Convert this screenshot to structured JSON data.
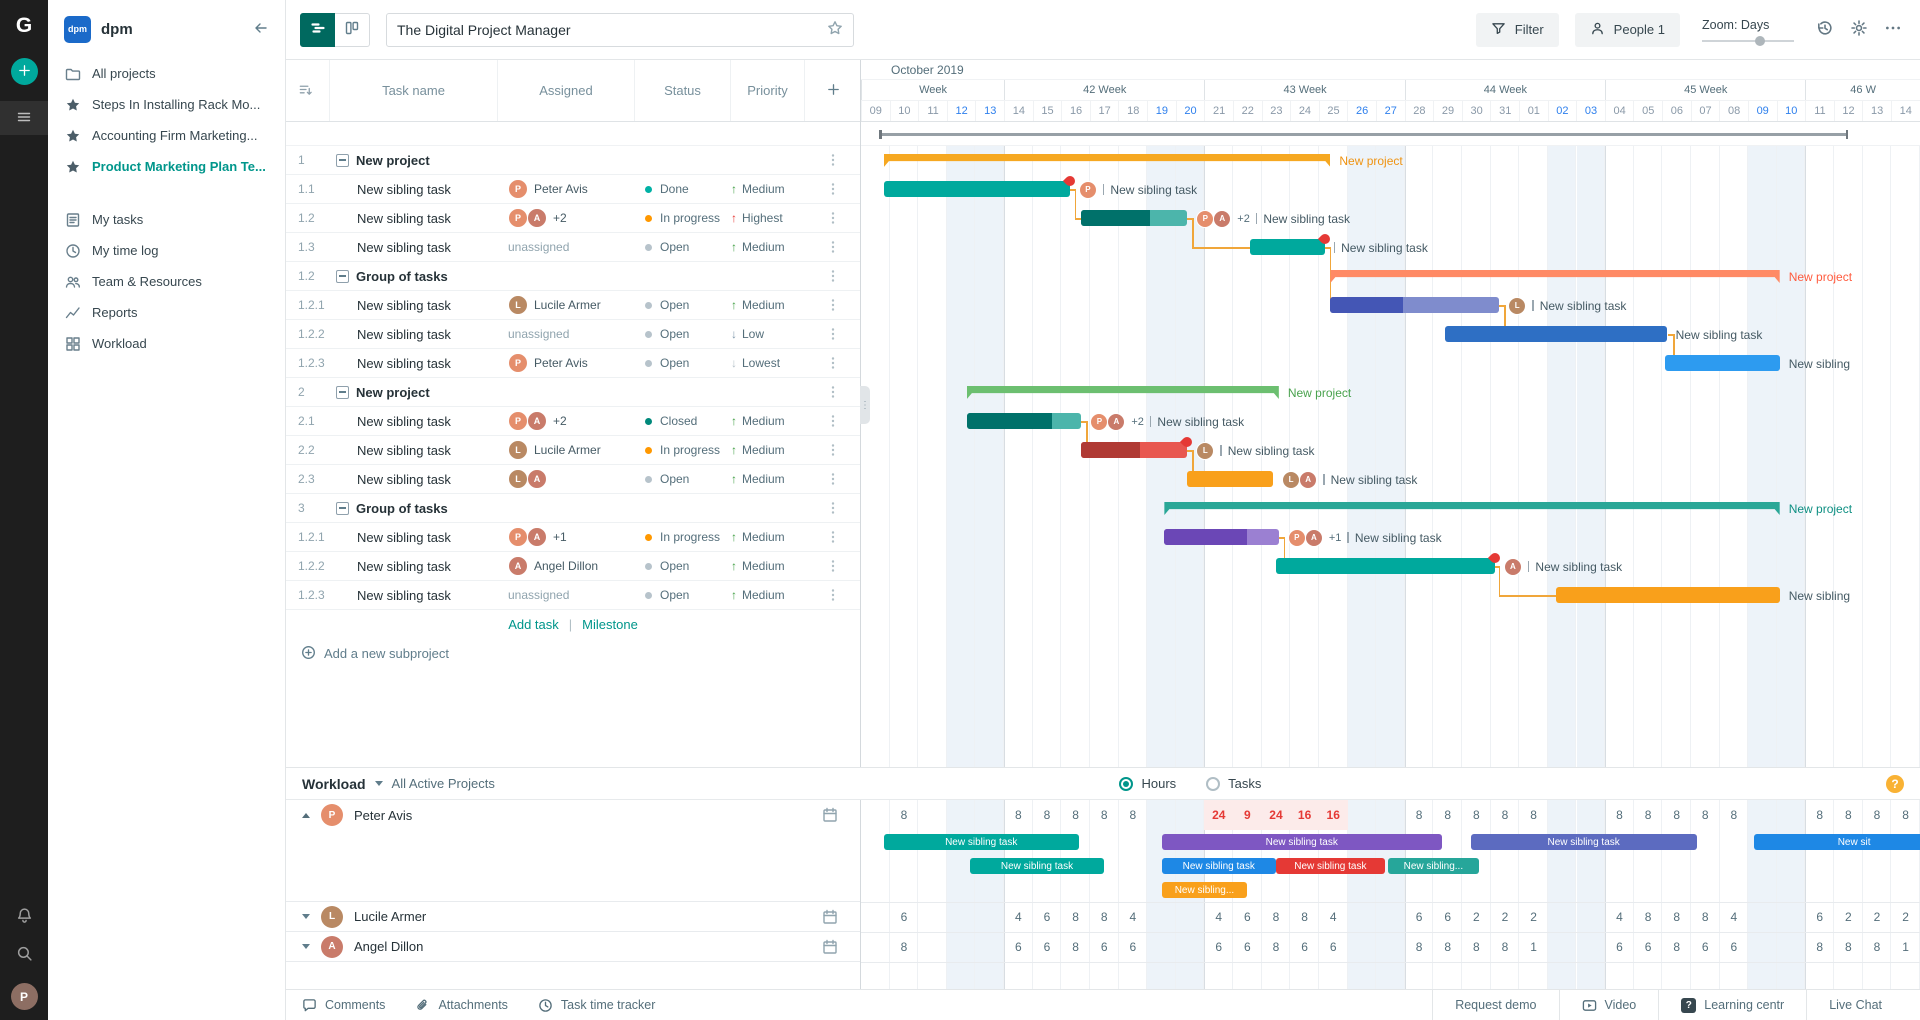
{
  "rail": {
    "logo_text": "G",
    "icons": [
      "plus",
      "burger",
      "bell",
      "search"
    ],
    "avatar_initial": "P"
  },
  "sidebar": {
    "workspace_logo": "dpm",
    "workspace_name": "dpm",
    "all_projects": "All projects",
    "starred": [
      "Steps In Installing Rack Mo...",
      "Accounting Firm Marketing...",
      "Product Marketing Plan Te..."
    ],
    "active_starred_index": 2,
    "nav": [
      {
        "icon": "tasks",
        "label": "My tasks"
      },
      {
        "icon": "clock",
        "label": "My time log"
      },
      {
        "icon": "people",
        "label": "Team & Resources"
      },
      {
        "icon": "chart",
        "label": "Reports"
      },
      {
        "icon": "grid",
        "label": "Workload"
      }
    ]
  },
  "toolbar": {
    "title": "The Digital Project Manager",
    "filter_label": "Filter",
    "people_label": "People 1",
    "zoom_label": "Zoom: Days"
  },
  "table": {
    "headers": [
      "Task name",
      "Assigned",
      "Status",
      "Priority"
    ],
    "add_task": "Add task",
    "milestone": "Milestone",
    "add_subproject": "Add a new subproject"
  },
  "timeline": {
    "month": "October 2019",
    "weeks": [
      {
        "label": "Week",
        "span": 5
      },
      {
        "label": "42 Week",
        "span": 7
      },
      {
        "label": "43 Week",
        "span": 7
      },
      {
        "label": "44 Week",
        "span": 7
      },
      {
        "label": "45 Week",
        "span": 7
      },
      {
        "label": "46 W",
        "span": 4
      }
    ],
    "days": [
      "09",
      "10",
      "11",
      "12",
      "13",
      "14",
      "15",
      "16",
      "17",
      "18",
      "19",
      "20",
      "21",
      "22",
      "23",
      "24",
      "25",
      "26",
      "27",
      "28",
      "29",
      "30",
      "31",
      "01",
      "02",
      "03",
      "04",
      "05",
      "06",
      "07",
      "08",
      "09",
      "10",
      "11",
      "12",
      "13",
      "14"
    ],
    "weekend_indices": [
      3,
      4,
      10,
      11,
      17,
      18,
      24,
      25,
      31,
      32
    ],
    "week_start_indices": [
      5,
      12,
      19,
      26,
      33
    ]
  },
  "people_map": {
    "peter": {
      "initial": "P",
      "color": "#e58e6c",
      "name": "Peter Avis"
    },
    "lucile": {
      "initial": "L",
      "color": "#b98963",
      "name": "Lucile Armer"
    },
    "angel": {
      "initial": "A",
      "color": "#c97b6a",
      "name": "Angel Dillon"
    }
  },
  "tasks": [
    {
      "wbs": "1",
      "name": "New project",
      "group": true,
      "bar": {
        "type": "summary",
        "start": 0.8,
        "dur": 15.6,
        "color": "#f6a821",
        "label": "New project",
        "label_color": "#ef9312"
      }
    },
    {
      "wbs": "1.1",
      "name": "New sibling task",
      "assigned": {
        "avatars": [
          "peter"
        ],
        "text": "Peter Avis"
      },
      "status": {
        "label": "Done",
        "color": "#00b1a5"
      },
      "priority": {
        "label": "Medium",
        "dir": "up",
        "color": "#43a047"
      },
      "bar": {
        "type": "task",
        "start": 0.8,
        "dur": 6.5,
        "color": "#00a99d",
        "flame": true,
        "avatars": [
          "peter"
        ],
        "pipe": true,
        "label": "New sibling task"
      }
    },
    {
      "wbs": "1.2",
      "name": "New sibling task",
      "assigned": {
        "avatars": [
          "peter",
          "angel"
        ],
        "text": "+2"
      },
      "status": {
        "label": "In progress",
        "color": "#ff9800"
      },
      "priority": {
        "label": "Highest",
        "dir": "up",
        "color": "#e53935"
      },
      "bar": {
        "type": "task",
        "start": 7.7,
        "dur": 3.7,
        "color": "#4cb5ab",
        "progress": 0.65,
        "progress_color": "#00716a",
        "avatars": [
          "peter",
          "angel"
        ],
        "extra": "+2",
        "pipe": true,
        "label": "New sibling task"
      }
    },
    {
      "wbs": "1.3",
      "name": "New sibling task",
      "assigned": {
        "text": "unassigned",
        "muted": true
      },
      "status": {
        "label": "Open",
        "color": "#b7c3cb"
      },
      "priority": {
        "label": "Medium",
        "dir": "up",
        "color": "#43a047"
      },
      "bar": {
        "type": "task",
        "start": 13.6,
        "dur": 2.6,
        "color": "#00a99d",
        "flame": true,
        "pipe": true,
        "label": "New sibling task"
      }
    },
    {
      "wbs": "1.2",
      "name": "Group of tasks",
      "group": true,
      "bar": {
        "type": "summary",
        "start": 16.4,
        "dur": 15.7,
        "color": "#ff8a65",
        "label": "New project",
        "label_color": "#ff5b3e"
      }
    },
    {
      "wbs": "1.2.1",
      "name": "New sibling task",
      "assigned": {
        "avatars": [
          "lucile"
        ],
        "text": "Lucile Armer"
      },
      "status": {
        "label": "Open",
        "color": "#b7c3cb"
      },
      "priority": {
        "label": "Medium",
        "dir": "up",
        "color": "#43a047"
      },
      "bar": {
        "type": "task",
        "start": 16.4,
        "dur": 5.9,
        "color": "#7f8ccd",
        "progress": 0.43,
        "progress_color": "#4456b5",
        "avatars": [
          "lucile"
        ],
        "pipe": true,
        "label": "New sibling task"
      }
    },
    {
      "wbs": "1.2.2",
      "name": "New sibling task",
      "assigned": {
        "text": "unassigned",
        "muted": true
      },
      "status": {
        "label": "Open",
        "color": "#b7c3cb"
      },
      "priority": {
        "label": "Low",
        "dir": "down",
        "color": "#7e97ab"
      },
      "bar": {
        "type": "task",
        "start": 20.4,
        "dur": 7.75,
        "color": "#2e6fc4",
        "label": "New sibling task"
      }
    },
    {
      "wbs": "1.2.3",
      "name": "New sibling task",
      "assigned": {
        "avatars": [
          "peter"
        ],
        "text": "Peter Avis"
      },
      "status": {
        "label": "Open",
        "color": "#b7c3cb"
      },
      "priority": {
        "label": "Lowest",
        "dir": "down",
        "color": "#b4c0c9"
      },
      "bar": {
        "type": "task",
        "start": 28.1,
        "dur": 4.0,
        "color": "#2d9bf0",
        "label": "New sibling"
      }
    },
    {
      "wbs": "2",
      "name": "New project",
      "group": true,
      "bar": {
        "type": "summary",
        "start": 3.7,
        "dur": 10.9,
        "color": "#6cbf70",
        "label": "New project",
        "label_color": "#49a24d"
      }
    },
    {
      "wbs": "2.1",
      "name": "New sibling task",
      "assigned": {
        "avatars": [
          "peter",
          "angel"
        ],
        "text": "+2"
      },
      "status": {
        "label": "Closed",
        "color": "#00897b"
      },
      "priority": {
        "label": "Medium",
        "dir": "up",
        "color": "#43a047"
      },
      "bar": {
        "type": "task",
        "start": 3.7,
        "dur": 4.0,
        "color": "#4cb5ab",
        "progress": 0.74,
        "progress_color": "#00716a",
        "avatars": [
          "peter",
          "angel"
        ],
        "extra": "+2",
        "pipe": true,
        "label": "New sibling task"
      }
    },
    {
      "wbs": "2.2",
      "name": "New sibling task",
      "assigned": {
        "avatars": [
          "lucile"
        ],
        "text": "Lucile Armer"
      },
      "status": {
        "label": "In progress",
        "color": "#ff9800"
      },
      "priority": {
        "label": "Medium",
        "dir": "up",
        "color": "#43a047"
      },
      "bar": {
        "type": "task",
        "start": 7.7,
        "dur": 3.7,
        "color": "#e85750",
        "progress": 0.55,
        "progress_color": "#b03a34",
        "flame": true,
        "avatars": [
          "lucile"
        ],
        "pipe": true,
        "label": "New sibling task"
      }
    },
    {
      "wbs": "2.3",
      "name": "New sibling task",
      "assigned": {
        "avatars": [
          "lucile",
          "angel"
        ]
      },
      "status": {
        "label": "Open",
        "color": "#b7c3cb"
      },
      "priority": {
        "label": "Medium",
        "dir": "up",
        "color": "#43a047"
      },
      "bar": {
        "type": "task",
        "start": 11.4,
        "dur": 3.0,
        "color": "#f9a01b",
        "avatars": [
          "lucile",
          "angel"
        ],
        "pipe": true,
        "label": "New sibling task"
      }
    },
    {
      "wbs": "3",
      "name": "Group of tasks",
      "group": true,
      "bar": {
        "type": "summary",
        "start": 10.6,
        "dur": 21.5,
        "color": "#2aa797",
        "label": "New project",
        "label_color": "#0d8f82"
      }
    },
    {
      "wbs": "1.2.1",
      "name": "New sibling task",
      "assigned": {
        "avatars": [
          "peter",
          "angel"
        ],
        "text": "+1"
      },
      "status": {
        "label": "In progress",
        "color": "#ff9800"
      },
      "priority": {
        "label": "Medium",
        "dir": "up",
        "color": "#43a047"
      },
      "bar": {
        "type": "task",
        "start": 10.6,
        "dur": 4.0,
        "color": "#9b80d2",
        "progress": 0.72,
        "progress_color": "#6b47b6",
        "avatars": [
          "peter",
          "angel"
        ],
        "extra": "+1",
        "pipe": true,
        "label": "New sibling task"
      }
    },
    {
      "wbs": "1.2.2",
      "name": "New sibling task",
      "assigned": {
        "avatars": [
          "angel"
        ],
        "text": "Angel Dillon"
      },
      "status": {
        "label": "Open",
        "color": "#b7c3cb"
      },
      "priority": {
        "label": "Medium",
        "dir": "up",
        "color": "#43a047"
      },
      "bar": {
        "type": "task",
        "start": 14.5,
        "dur": 7.65,
        "color": "#00a99d",
        "flame": true,
        "avatars": [
          "angel"
        ],
        "pipe": true,
        "label": "New sibling task"
      }
    },
    {
      "wbs": "1.2.3",
      "name": "New sibling task",
      "assigned": {
        "text": "unassigned",
        "muted": true
      },
      "status": {
        "label": "Open",
        "color": "#b7c3cb"
      },
      "priority": {
        "label": "Medium",
        "dir": "up",
        "color": "#43a047"
      },
      "bar": {
        "type": "task",
        "start": 24.3,
        "dur": 7.8,
        "color": "#f9a01b",
        "label": "New sibling"
      }
    }
  ],
  "connectors": [
    {
      "from": 1,
      "from_day": 7.3,
      "to": 2,
      "to_day": 7.7
    },
    {
      "from": 2,
      "from_day": 11.4,
      "to": 3,
      "to_day": 13.6
    },
    {
      "from": 3,
      "from_day": 16.2,
      "to": 5,
      "to_day": 16.4
    },
    {
      "from": 5,
      "from_day": 22.3,
      "to": 6,
      "to_day": 20.4
    },
    {
      "from": 6,
      "from_day": 28.2,
      "to": 7,
      "to_day": 28.1
    },
    {
      "from": 9,
      "from_day": 7.7,
      "to": 10,
      "to_day": 7.7
    },
    {
      "from": 10,
      "from_day": 11.4,
      "to": 11,
      "to_day": 11.4
    },
    {
      "from": 13,
      "from_day": 14.6,
      "to": 14,
      "to_day": 14.5
    },
    {
      "from": 14,
      "from_day": 22.1,
      "to": 15,
      "to_day": 24.3
    }
  ],
  "workload": {
    "title": "Workload",
    "scope": "All Active Projects",
    "mode_hours": "Hours",
    "mode_tasks": "Tasks",
    "selected_mode": "Hours",
    "people": [
      {
        "id": "peter",
        "name": "Peter Avis",
        "expanded": true,
        "hours": [
          [
            1,
            8
          ],
          [
            5,
            8
          ],
          [
            6,
            8
          ],
          [
            7,
            8
          ],
          [
            8,
            8
          ],
          [
            9,
            8
          ],
          [
            12,
            24
          ],
          [
            13,
            9
          ],
          [
            14,
            24
          ],
          [
            15,
            16
          ],
          [
            16,
            16
          ],
          [
            19,
            8
          ],
          [
            20,
            8
          ],
          [
            21,
            8
          ],
          [
            22,
            8
          ],
          [
            23,
            8
          ],
          [
            26,
            8
          ],
          [
            27,
            8
          ],
          [
            28,
            8
          ],
          [
            29,
            8
          ],
          [
            30,
            8
          ],
          [
            33,
            8
          ],
          [
            34,
            8
          ],
          [
            35,
            8
          ],
          [
            36,
            8
          ]
        ],
        "bars": [
          [
            {
              "start": 0.8,
              "dur": 6.8,
              "color": "#00a99d",
              "label": "New sibling task"
            },
            {
              "start": 10.5,
              "dur": 9.8,
              "color": "#7e57c2",
              "label": "New sibling task"
            },
            {
              "start": 21.3,
              "dur": 7.9,
              "color": "#5c6bc0",
              "label": "New sibling task"
            },
            {
              "start": 31.2,
              "dur": 7.0,
              "color": "#1e88e5",
              "label": "New sit"
            }
          ],
          [
            {
              "start": 3.8,
              "dur": 4.7,
              "color": "#00a99d",
              "label": "New sibling task"
            },
            {
              "start": 10.5,
              "dur": 4.0,
              "color": "#1e88e5",
              "label": "New sibling task"
            },
            {
              "start": 14.5,
              "dur": 3.8,
              "color": "#e53935",
              "label": "New sibling task"
            },
            {
              "start": 18.4,
              "dur": 3.2,
              "color": "#26a69a",
              "label": "New sibling..."
            }
          ],
          [
            {
              "start": 10.5,
              "dur": 3.0,
              "color": "#f9a01b",
              "label": "New sibling..."
            }
          ]
        ]
      },
      {
        "id": "lucile",
        "name": "Lucile Armer",
        "expanded": false,
        "hours": [
          [
            1,
            6
          ],
          [
            5,
            4
          ],
          [
            6,
            6
          ],
          [
            7,
            8
          ],
          [
            8,
            8
          ],
          [
            9,
            4
          ],
          [
            12,
            4
          ],
          [
            13,
            6
          ],
          [
            14,
            8
          ],
          [
            15,
            8
          ],
          [
            16,
            4
          ],
          [
            19,
            6
          ],
          [
            20,
            6
          ],
          [
            21,
            2
          ],
          [
            22,
            2
          ],
          [
            23,
            2
          ],
          [
            26,
            4
          ],
          [
            27,
            8
          ],
          [
            28,
            8
          ],
          [
            29,
            8
          ],
          [
            30,
            4
          ],
          [
            33,
            6
          ],
          [
            34,
            2
          ],
          [
            35,
            2
          ],
          [
            36,
            2
          ]
        ]
      },
      {
        "id": "angel",
        "name": "Angel Dillon",
        "expanded": false,
        "hours": [
          [
            1,
            8
          ],
          [
            5,
            6
          ],
          [
            6,
            6
          ],
          [
            7,
            8
          ],
          [
            8,
            6
          ],
          [
            9,
            6
          ],
          [
            12,
            6
          ],
          [
            13,
            6
          ],
          [
            14,
            8
          ],
          [
            15,
            6
          ],
          [
            16,
            6
          ],
          [
            19,
            8
          ],
          [
            20,
            8
          ],
          [
            21,
            8
          ],
          [
            22,
            8
          ],
          [
            23,
            1
          ],
          [
            26,
            6
          ],
          [
            27,
            6
          ],
          [
            28,
            8
          ],
          [
            29,
            6
          ],
          [
            30,
            6
          ],
          [
            33,
            8
          ],
          [
            34,
            8
          ],
          [
            35,
            8
          ],
          [
            36,
            1
          ]
        ]
      }
    ]
  },
  "footer": {
    "left": [
      {
        "icon": "comment",
        "label": "Comments"
      },
      {
        "icon": "paperclip",
        "label": "Attachments"
      },
      {
        "icon": "clock",
        "label": "Task time tracker"
      }
    ],
    "right": [
      {
        "icon": "",
        "label": "Request demo"
      },
      {
        "icon": "video",
        "label": "Video"
      },
      {
        "icon": "question",
        "label": "Learning centr"
      },
      {
        "icon": "",
        "label": "Live Chat"
      }
    ]
  }
}
